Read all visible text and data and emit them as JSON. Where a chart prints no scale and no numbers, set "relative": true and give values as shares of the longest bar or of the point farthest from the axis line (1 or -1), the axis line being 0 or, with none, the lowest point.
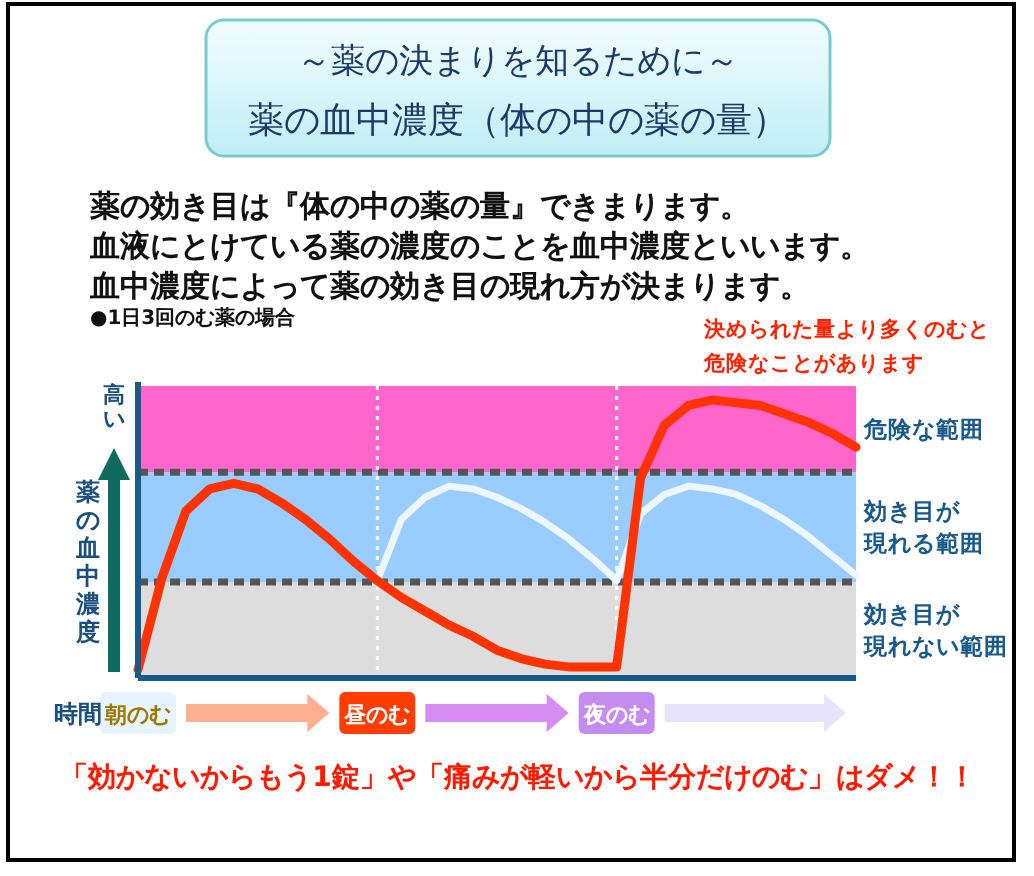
{
  "chart_data": {
    "type": "line",
    "title": "～薬の決まりを知るために～",
    "subtitle": "薬の血中濃度（体の中の薬の量）",
    "xlabel": "時間",
    "ylabel": "薬の血中濃度",
    "relative": true,
    "categories": [
      "朝のむ",
      null,
      null,
      null,
      null,
      null,
      null,
      null,
      null,
      null,
      "昼のむ",
      null,
      null,
      null,
      null,
      null,
      null,
      null,
      null,
      null,
      "夜のむ",
      null,
      null,
      null,
      null,
      null,
      null,
      null,
      null,
      null,
      null
    ],
    "series": [
      {
        "color": "#eef6ff",
        "values": [
          null,
          null,
          null,
          null,
          null,
          null,
          null,
          null,
          null,
          null,
          0.35,
          0.57,
          0.65,
          0.69,
          0.68,
          0.65,
          0.61,
          0.56,
          0.5,
          0.43,
          0.35,
          0.59,
          0.66,
          0.69,
          0.68,
          0.66,
          0.62,
          0.57,
          0.51,
          0.44,
          0.37
        ]
      },
      {
        "color": "#ff3300",
        "values": [
          0.03,
          0.36,
          0.6,
          0.68,
          0.7,
          0.68,
          0.63,
          0.57,
          0.5,
          0.42,
          0.35,
          0.29,
          0.24,
          0.19,
          0.15,
          0.1,
          0.07,
          0.05,
          0.04,
          0.04,
          0.04,
          0.72,
          0.91,
          0.98,
          1.0,
          0.99,
          0.98,
          0.95,
          0.92,
          0.88,
          0.83
        ]
      }
    ],
    "bands": [
      {
        "axis": "y",
        "from": 0,
        "to": 0.345,
        "label": "効き目が現れない範囲",
        "color": "#dddddd"
      },
      {
        "axis": "y",
        "from": 0.345,
        "to": 0.74,
        "label": "効き目が現れる範囲",
        "color": "#99ccff"
      },
      {
        "axis": "y",
        "from": 0.74,
        "to": 1.05,
        "label": "危険な範囲",
        "color": "#ff66cc"
      }
    ],
    "ref_lines": [
      {
        "axis": "y",
        "value": 0.345,
        "color": "#555555",
        "line_style": "dashed"
      },
      {
        "axis": "y",
        "value": 0.74,
        "color": "#555555",
        "line_style": "dashed"
      },
      {
        "axis": "x",
        "value": "昼のむ",
        "color": "#ffffff",
        "line_style": "dotted"
      },
      {
        "axis": "x",
        "value": "夜のむ",
        "color": "#ffffff",
        "line_style": "dotted"
      }
    ],
    "annotations": [
      "薬の効き目は『体の中の薬の量』できまります。",
      "血液にとけている薬の濃度のことを血中濃度といいます。",
      "血中濃度によって薬の効き目の現れ方が決まります。",
      "●1日3回のむ薬の場合",
      "決められた量より多くのむと危険なことがあります",
      "高い",
      "「効かないからもう1錠」や「痛みが軽いから半分だけのむ」はダメ！！"
    ]
  }
}
